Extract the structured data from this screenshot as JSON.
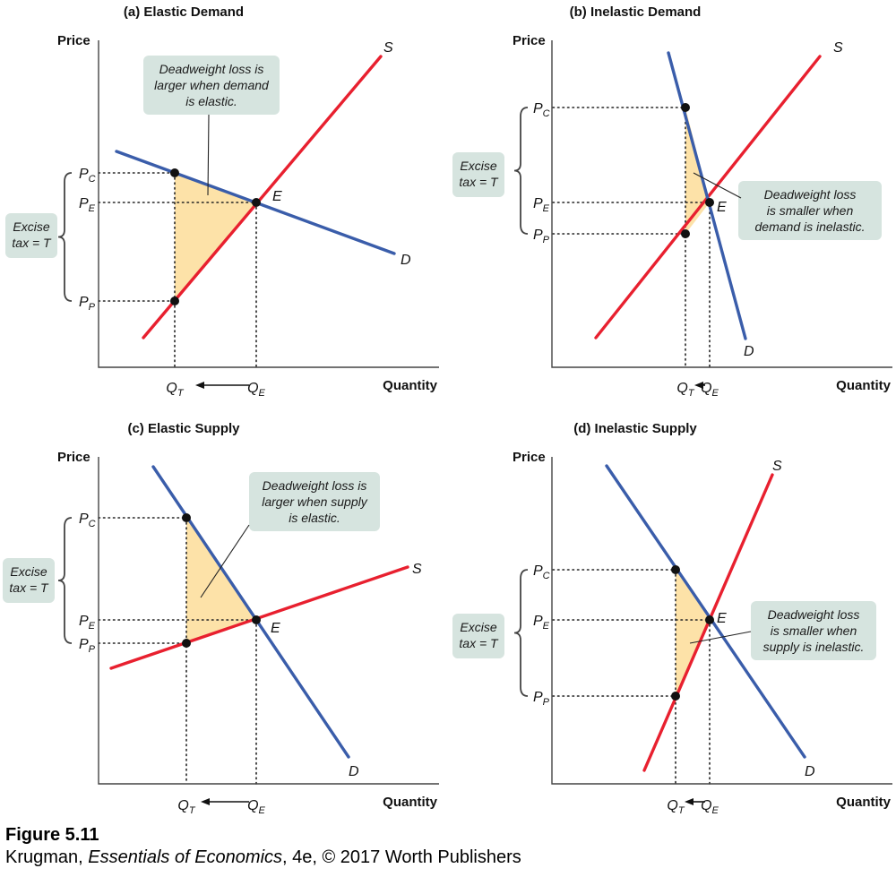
{
  "figure": {
    "title": "Figure 5.11",
    "credit_prefix": "Krugman, ",
    "credit_book": "Essentials of Economics",
    "credit_suffix": ", 4e, © 2017 Worth Publishers"
  },
  "colors": {
    "supply": "#e8202f",
    "demand": "#3a5daa",
    "dwl_fill": "#fde2a8",
    "note_bg": "#d6e4df",
    "axis": "#444444"
  },
  "chart_data": [
    {
      "type": "line",
      "title": "(a) Elastic Demand",
      "ylabel": "Price",
      "xlabel": "Quantity",
      "series": [
        {
          "name": "S",
          "role": "supply"
        },
        {
          "name": "D",
          "role": "demand"
        }
      ],
      "point_labels": [
        "E"
      ],
      "price_labels": [
        "P",
        "P",
        "P"
      ],
      "price_subs": [
        "C",
        "E",
        "P"
      ],
      "quantity_labels": [
        "Q",
        "Q"
      ],
      "quantity_subs": [
        "T",
        "E"
      ],
      "tax_label": [
        "Excise",
        "tax = T"
      ],
      "note": [
        "Deadweight loss is",
        "larger when demand",
        "is elastic."
      ]
    },
    {
      "type": "line",
      "title": "(b) Inelastic Demand",
      "ylabel": "Price",
      "xlabel": "Quantity",
      "series": [
        {
          "name": "S",
          "role": "supply"
        },
        {
          "name": "D",
          "role": "demand"
        }
      ],
      "point_labels": [
        "E"
      ],
      "price_labels": [
        "P",
        "P",
        "P"
      ],
      "price_subs": [
        "C",
        "E",
        "P"
      ],
      "quantity_labels": [
        "Q",
        "Q"
      ],
      "quantity_subs": [
        "T",
        "E"
      ],
      "tax_label": [
        "Excise",
        "tax = T"
      ],
      "note": [
        "Deadweight loss",
        "is smaller when",
        "demand is inelastic."
      ]
    },
    {
      "type": "line",
      "title": "(c) Elastic Supply",
      "ylabel": "Price",
      "xlabel": "Quantity",
      "series": [
        {
          "name": "S",
          "role": "supply"
        },
        {
          "name": "D",
          "role": "demand"
        }
      ],
      "point_labels": [
        "E"
      ],
      "price_labels": [
        "P",
        "P",
        "P"
      ],
      "price_subs": [
        "C",
        "E",
        "P"
      ],
      "quantity_labels": [
        "Q",
        "Q"
      ],
      "quantity_subs": [
        "T",
        "E"
      ],
      "tax_label": [
        "Excise",
        "tax = T"
      ],
      "note": [
        "Deadweight loss is",
        "larger when supply",
        "is elastic."
      ]
    },
    {
      "type": "line",
      "title": "(d) Inelastic Supply",
      "ylabel": "Price",
      "xlabel": "Quantity",
      "series": [
        {
          "name": "S",
          "role": "supply"
        },
        {
          "name": "D",
          "role": "demand"
        }
      ],
      "point_labels": [
        "E"
      ],
      "price_labels": [
        "P",
        "P",
        "P"
      ],
      "price_subs": [
        "C",
        "E",
        "P"
      ],
      "quantity_labels": [
        "Q",
        "Q"
      ],
      "quantity_subs": [
        "T",
        "E"
      ],
      "tax_label": [
        "Excise",
        "tax = T"
      ],
      "note": [
        "Deadweight loss",
        "is smaller when",
        "supply is inelastic."
      ]
    }
  ]
}
